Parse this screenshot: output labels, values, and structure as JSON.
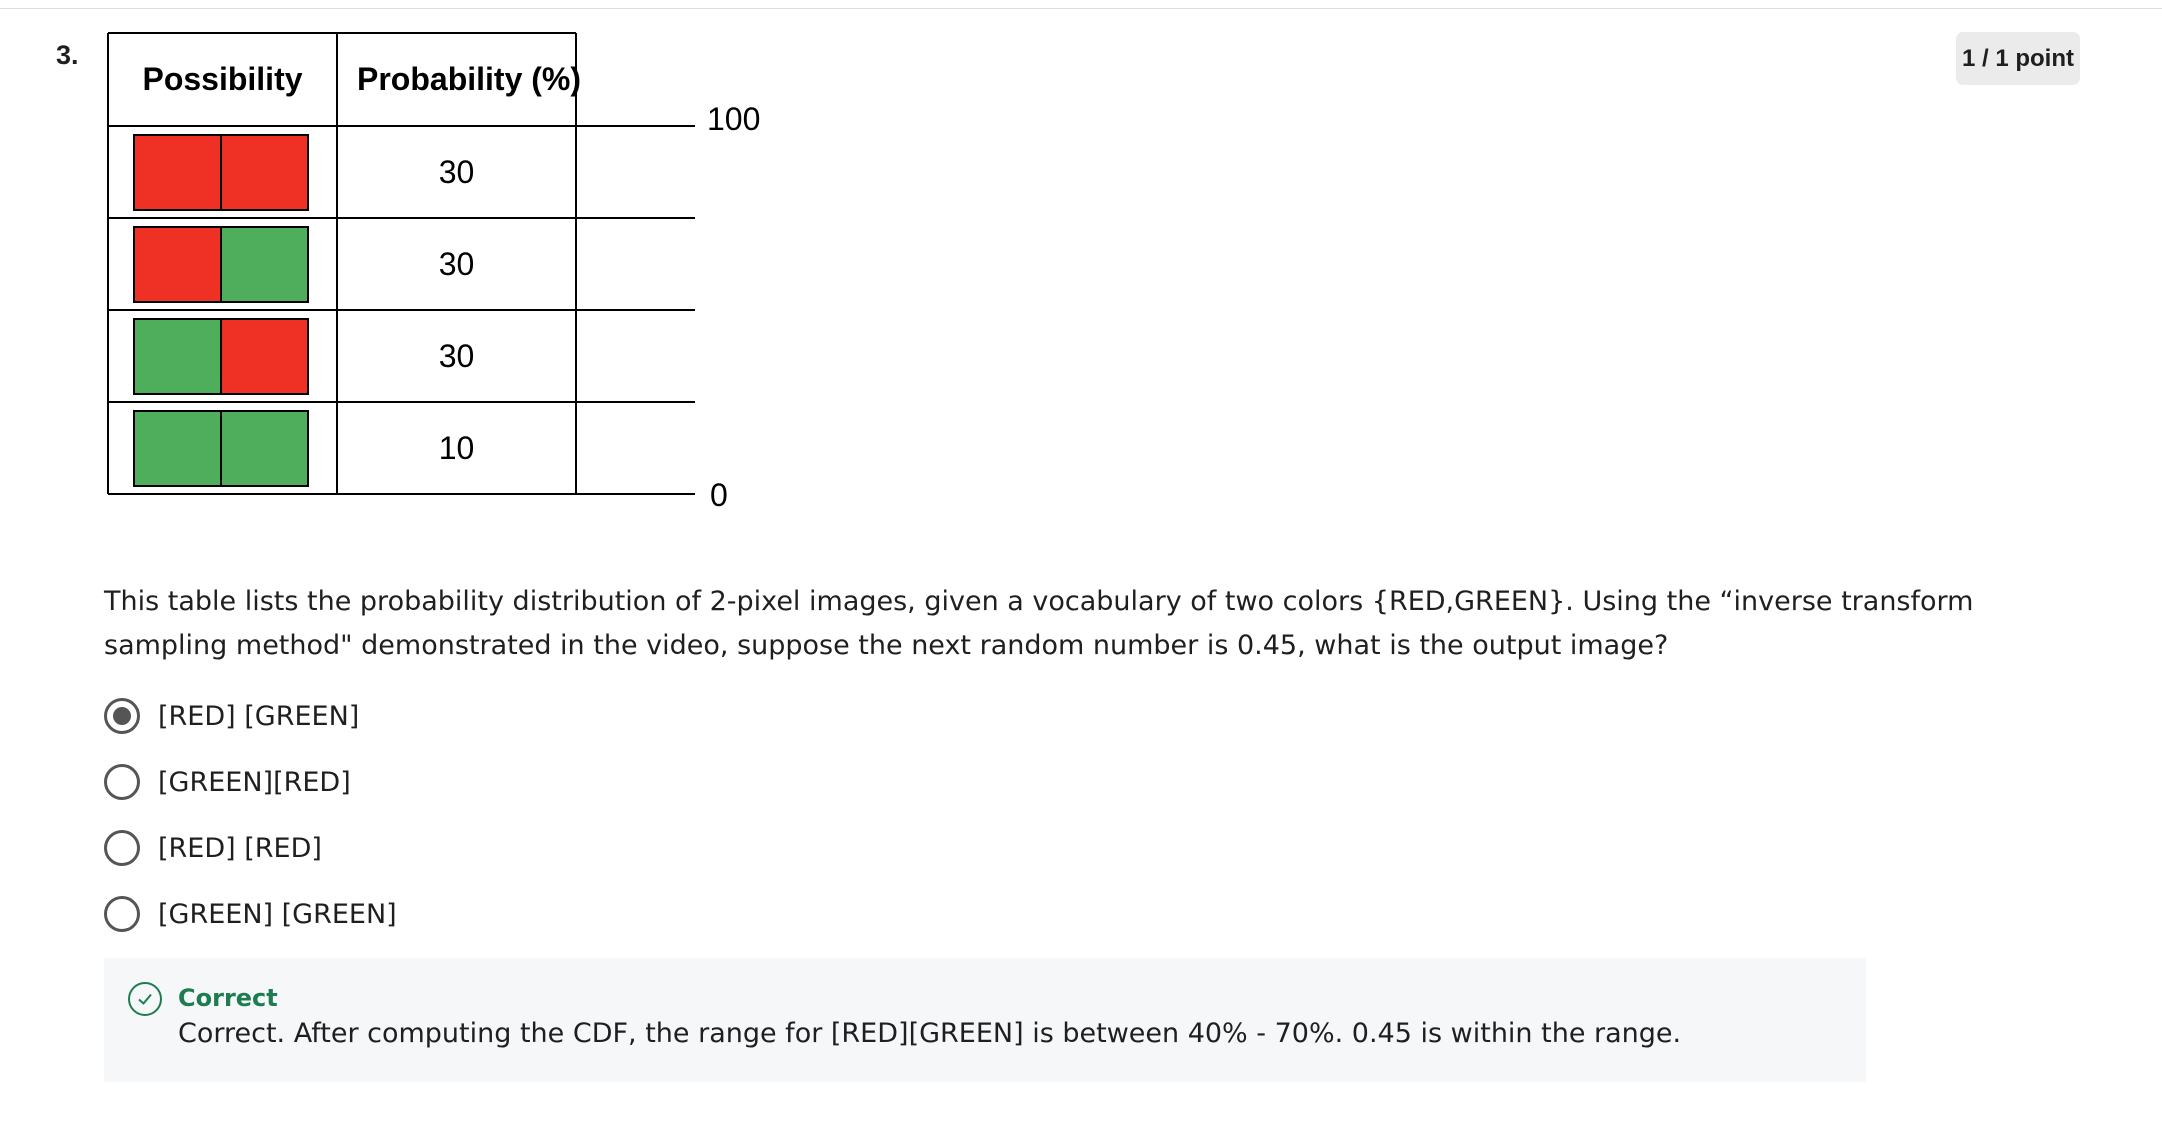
{
  "question": {
    "number": "3.",
    "points": "1 / 1 point",
    "text_line1": " This table lists the probability distribution of 2-pixel images, given a vocabulary of two colors {RED,GREEN}. Using the “inverse transform",
    "text_line2": "sampling method\" demonstrated in the video, suppose the next random number is 0.45, what is the output image?"
  },
  "table": {
    "headers": [
      "Possibility",
      "Probability (%)"
    ],
    "rows": [
      {
        "pixels": [
          "red",
          "red"
        ],
        "probability": "30"
      },
      {
        "pixels": [
          "red",
          "green"
        ],
        "probability": "30"
      },
      {
        "pixels": [
          "green",
          "red"
        ],
        "probability": "30"
      },
      {
        "pixels": [
          "green",
          "green"
        ],
        "probability": "10"
      }
    ],
    "scale_top": "100",
    "scale_bottom": "0"
  },
  "colors": {
    "red": "#ee3124",
    "green": "#4fae5c",
    "correct": "#1d7c50"
  },
  "options": [
    {
      "label": "[RED] [GREEN]",
      "selected": true
    },
    {
      "label": "[GREEN][RED]",
      "selected": false
    },
    {
      "label": "[RED] [RED]",
      "selected": false
    },
    {
      "label": "[GREEN] [GREEN]",
      "selected": false
    }
  ],
  "feedback": {
    "icon": "check-circle-icon",
    "title": "Correct",
    "text": "Correct. After computing the CDF, the range for [RED][GREEN] is between 40% - 70%. 0.45 is within the range."
  }
}
